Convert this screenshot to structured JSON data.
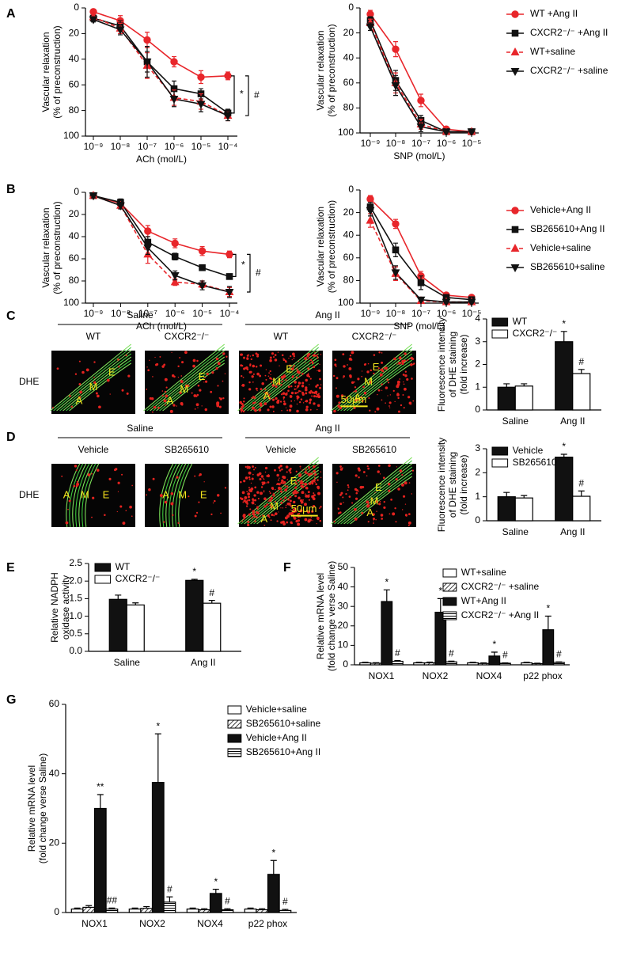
{
  "panels": [
    "A",
    "B",
    "C",
    "D",
    "E",
    "F",
    "G"
  ],
  "micrographs": [
    {
      "group_labels": [
        "Saline",
        "Ang II"
      ],
      "columns": [
        "WT",
        "CXCR2⁻/⁻",
        "WT",
        "CXCR2⁻/⁻"
      ],
      "row_label": "DHE",
      "layer_labels": [
        [
          "E",
          "M",
          "A"
        ],
        [
          "E",
          "M",
          "A"
        ],
        [
          "E",
          "M",
          "A"
        ],
        [
          "E",
          "M",
          "A"
        ]
      ],
      "scale_bar": "50μm"
    },
    {
      "group_labels": [
        "Saline",
        "Ang II"
      ],
      "columns": [
        "Vehicle",
        "SB265610",
        "Vehicle",
        "SB265610"
      ],
      "row_label": "DHE",
      "layer_labels": [
        [
          "A",
          "M",
          "E"
        ],
        [
          "A",
          "M",
          "E"
        ],
        [
          "E",
          "M",
          "A"
        ],
        [
          "E",
          "M",
          "A"
        ]
      ],
      "scale_bar": "50μm"
    }
  ],
  "chart_data": [
    {
      "type": "line",
      "xlabel": "ACh (mol/L)",
      "ylabel": [
        "Vascular relaxation",
        "(% of preconstruction)"
      ],
      "categories": [
        "10⁻⁹",
        "10⁻⁸",
        "10⁻⁷",
        "10⁻⁶",
        "10⁻⁵",
        "10⁻⁴"
      ],
      "ylim": [
        100,
        0
      ],
      "yticks": [
        0,
        20,
        40,
        60,
        80,
        100
      ],
      "annotations": [
        "*",
        "#"
      ],
      "series": [
        {
          "color": "#e8262b",
          "marker": "circle",
          "dashed": false,
          "values": [
            3,
            10,
            25,
            42,
            54,
            53
          ],
          "errors": [
            2,
            4,
            6,
            4,
            5,
            3
          ]
        },
        {
          "color": "#111111",
          "marker": "square",
          "dashed": false,
          "values": [
            8,
            14,
            42,
            63,
            67,
            82
          ],
          "errors": [
            2,
            4,
            8,
            6,
            4,
            3
          ]
        },
        {
          "color": "#e8262b",
          "marker": "triangle",
          "dashed": true,
          "values": [
            7,
            16,
            45,
            70,
            73,
            84
          ],
          "errors": [
            2,
            4,
            10,
            6,
            6,
            4
          ]
        },
        {
          "color": "#111111",
          "marker": "triangle-down",
          "dashed": false,
          "values": [
            9,
            17,
            42,
            71,
            75,
            84
          ],
          "errors": [
            2,
            4,
            12,
            6,
            6,
            4
          ]
        }
      ]
    },
    {
      "type": "line",
      "xlabel": "SNP (mol/L)",
      "ylabel": [
        "Vascular relaxation",
        "(% of preconstruction)"
      ],
      "categories": [
        "10⁻⁹",
        "10⁻⁸",
        "10⁻⁷",
        "10⁻⁶",
        "10⁻⁵"
      ],
      "ylim": [
        100,
        0
      ],
      "yticks": [
        0,
        20,
        40,
        60,
        80,
        100
      ],
      "legend": "right",
      "series": [
        {
          "name": "WT +Ang II",
          "color": "#e8262b",
          "marker": "circle",
          "dashed": false,
          "values": [
            5,
            33,
            74,
            97,
            99
          ],
          "errors": [
            3,
            6,
            5,
            2,
            1
          ]
        },
        {
          "name": "CXCR2⁻/⁻ +Ang II",
          "color": "#111111",
          "marker": "square",
          "dashed": false,
          "values": [
            10,
            58,
            90,
            99,
            99
          ],
          "errors": [
            3,
            8,
            4,
            1,
            1
          ]
        },
        {
          "name": "WT+saline",
          "color": "#e8262b",
          "marker": "triangle",
          "dashed": true,
          "values": [
            12,
            60,
            93,
            99,
            99
          ],
          "errors": [
            3,
            8,
            4,
            1,
            1
          ]
        },
        {
          "name": "CXCR2⁻/⁻ +saline",
          "color": "#111111",
          "marker": "triangle-down",
          "dashed": false,
          "values": [
            15,
            62,
            95,
            99,
            99
          ],
          "errors": [
            3,
            8,
            4,
            1,
            1
          ]
        }
      ]
    },
    {
      "type": "line",
      "xlabel": "ACh (mol/L)",
      "ylabel": [
        "Vascular relaxation",
        "(% of preconstruction)"
      ],
      "categories": [
        "10⁻⁹",
        "10⁻⁸",
        "10⁻⁷",
        "10⁻⁶",
        "10⁻⁵",
        "10⁻⁴"
      ],
      "ylim": [
        100,
        0
      ],
      "yticks": [
        0,
        20,
        40,
        60,
        80,
        100
      ],
      "annotations": [
        "*",
        "#"
      ],
      "series": [
        {
          "color": "#e8262b",
          "marker": "circle",
          "dashed": false,
          "values": [
            3,
            10,
            35,
            46,
            53,
            56
          ],
          "errors": [
            2,
            3,
            5,
            4,
            4,
            3
          ]
        },
        {
          "color": "#111111",
          "marker": "square",
          "dashed": false,
          "values": [
            3,
            9,
            45,
            58,
            68,
            76
          ],
          "errors": [
            2,
            3,
            5,
            3,
            2,
            2
          ]
        },
        {
          "color": "#e8262b",
          "marker": "triangle",
          "dashed": true,
          "values": [
            3,
            12,
            56,
            81,
            83,
            90
          ],
          "errors": [
            2,
            3,
            8,
            3,
            3,
            4
          ]
        },
        {
          "color": "#111111",
          "marker": "triangle-down",
          "dashed": false,
          "values": [
            3,
            12,
            50,
            75,
            84,
            90
          ],
          "errors": [
            2,
            3,
            6,
            4,
            4,
            5
          ]
        }
      ]
    },
    {
      "type": "line",
      "xlabel": "SNP (mol/L)",
      "ylabel": [
        "Vascular relaxation",
        "(% of preconstruction)"
      ],
      "categories": [
        "10⁻⁹",
        "10⁻⁸",
        "10⁻⁷",
        "10⁻⁶",
        "10⁻⁵"
      ],
      "ylim": [
        100,
        0
      ],
      "yticks": [
        0,
        20,
        40,
        60,
        80,
        100
      ],
      "legend": "right",
      "series": [
        {
          "name": "Vehicle+Ang II",
          "color": "#e8262b",
          "marker": "circle",
          "dashed": false,
          "values": [
            8,
            30,
            76,
            93,
            95
          ],
          "errors": [
            3,
            4,
            4,
            2,
            2
          ]
        },
        {
          "name": "SB265610+Ang II",
          "color": "#111111",
          "marker": "square",
          "dashed": false,
          "values": [
            15,
            53,
            82,
            95,
            97
          ],
          "errors": [
            4,
            6,
            6,
            2,
            2
          ]
        },
        {
          "name": "Vehicle+saline",
          "color": "#e8262b",
          "marker": "triangle",
          "dashed": true,
          "values": [
            27,
            74,
            98,
            99,
            99
          ],
          "errors": [
            6,
            6,
            1,
            1,
            1
          ]
        },
        {
          "name": "SB265610+saline",
          "color": "#111111",
          "marker": "triangle-down",
          "dashed": false,
          "values": [
            18,
            73,
            97,
            99,
            99
          ],
          "errors": [
            5,
            6,
            1,
            1,
            1
          ]
        }
      ]
    },
    {
      "type": "bar",
      "ylabel": [
        "Fluorescence intensity",
        "of DHE staining",
        "(fold increase)"
      ],
      "categories": [
        "Saline",
        "Ang II"
      ],
      "ylim": [
        0,
        4
      ],
      "yticks": [
        0,
        1,
        2,
        3,
        4
      ],
      "legend": "top-left",
      "series": [
        {
          "name": "WT",
          "color": "#111111",
          "pattern": "solid",
          "values": [
            1.0,
            3.0
          ],
          "errors": [
            0.15,
            0.45
          ],
          "significance": [
            null,
            "*"
          ]
        },
        {
          "name": "CXCR2⁻/⁻",
          "color": "#ffffff",
          "pattern": "solid",
          "values": [
            1.05,
            1.6
          ],
          "errors": [
            0.1,
            0.18
          ],
          "significance": [
            null,
            "#"
          ]
        }
      ]
    },
    {
      "type": "bar",
      "ylabel": [
        "Fluorescence intensity",
        "of DHE staining",
        "(fold increase)"
      ],
      "categories": [
        "Saline",
        "Ang II"
      ],
      "ylim": [
        0,
        3
      ],
      "yticks": [
        0,
        1,
        2,
        3
      ],
      "legend": "top-left",
      "series": [
        {
          "name": "Vehicle",
          "color": "#111111",
          "pattern": "solid",
          "values": [
            1.0,
            2.65
          ],
          "errors": [
            0.18,
            0.12
          ],
          "significance": [
            null,
            "*"
          ]
        },
        {
          "name": "SB265610",
          "color": "#ffffff",
          "pattern": "solid",
          "values": [
            0.95,
            1.02
          ],
          "errors": [
            0.1,
            0.22
          ],
          "significance": [
            null,
            "#"
          ]
        }
      ]
    },
    {
      "type": "bar",
      "ylabel": [
        "Relative NADPH",
        "oxidase activity"
      ],
      "categories": [
        "Saline",
        "Ang II"
      ],
      "ylim": [
        0,
        2.5
      ],
      "yticks": [
        {
          "value": 0,
          "label": "0.0"
        },
        0.5,
        {
          "value": 1,
          "label": "1.0"
        },
        1.5,
        {
          "value": 2,
          "label": "2.0"
        },
        2.5
      ],
      "legend": "top-left",
      "series": [
        {
          "name": "WT",
          "color": "#111111",
          "pattern": "solid",
          "values": [
            1.48,
            2.02
          ],
          "errors": [
            0.12,
            0.03
          ],
          "significance": [
            null,
            "*"
          ]
        },
        {
          "name": "CXCR2⁻/⁻",
          "color": "#ffffff",
          "pattern": "solid",
          "values": [
            1.32,
            1.37
          ],
          "errors": [
            0.06,
            0.08
          ],
          "significance": [
            null,
            "#"
          ]
        }
      ]
    },
    {
      "type": "bar",
      "ylabel": [
        "Relative mRNA level",
        "(fold change verse Saline)"
      ],
      "categories": [
        "NOX1",
        "NOX2",
        "NOX4",
        "p22 phox"
      ],
      "ylim": [
        0,
        50
      ],
      "yticks": [
        0,
        10,
        20,
        30,
        40,
        50
      ],
      "legend": "top-right",
      "series": [
        {
          "name": "WT+saline",
          "color": "#ffffff",
          "pattern": "solid",
          "values": [
            1,
            1,
            1,
            1
          ],
          "errors": [
            0.3,
            0.3,
            0.3,
            0.3
          ]
        },
        {
          "name": "CXCR2⁻/⁻ +saline",
          "color": "#ffffff",
          "pattern": "hatch",
          "values": [
            0.8,
            1,
            0.7,
            0.6
          ],
          "errors": [
            0.3,
            0.4,
            0.3,
            0.2
          ]
        },
        {
          "name": "WT+Ang II",
          "color": "#111111",
          "pattern": "solid",
          "values": [
            32.5,
            27,
            4.5,
            18
          ],
          "errors": [
            6,
            7,
            2,
            7
          ],
          "significance": [
            "*",
            "*",
            "*",
            "*"
          ]
        },
        {
          "name": "CXCR2⁻/⁻ +Ang II",
          "color": "#ffffff",
          "pattern": "stripes",
          "values": [
            1.8,
            1.5,
            0.8,
            1.2
          ],
          "errors": [
            0.4,
            0.4,
            0.2,
            0.3
          ],
          "significance": [
            "#",
            "#",
            "#",
            "#"
          ]
        }
      ]
    },
    {
      "type": "bar",
      "ylabel": [
        "Relative mRNA level",
        "(fold change verse Saline)"
      ],
      "categories": [
        "NOX1",
        "NOX2",
        "NOX4",
        "p22 phox"
      ],
      "ylim": [
        0,
        60
      ],
      "yticks": [
        0,
        20,
        40,
        60
      ],
      "legend": "top-right",
      "series": [
        {
          "name": "Vehicle+saline",
          "color": "#ffffff",
          "pattern": "solid",
          "values": [
            1,
            1,
            1,
            1
          ],
          "errors": [
            0.3,
            0.3,
            0.3,
            0.3
          ]
        },
        {
          "name": "SB265610+saline",
          "color": "#ffffff",
          "pattern": "hatch",
          "values": [
            1.5,
            1.2,
            0.8,
            0.8
          ],
          "errors": [
            0.5,
            0.5,
            0.3,
            0.3
          ]
        },
        {
          "name": "Vehicle+Ang II",
          "color": "#111111",
          "pattern": "solid",
          "values": [
            30,
            37.5,
            5.5,
            11
          ],
          "errors": [
            4,
            14,
            1.2,
            4
          ],
          "significance": [
            "**",
            "*",
            "*",
            "*"
          ]
        },
        {
          "name": "SB265610+Ang II",
          "color": "#ffffff",
          "pattern": "stripes",
          "values": [
            1,
            3,
            0.8,
            0.6
          ],
          "errors": [
            0.3,
            1.5,
            0.3,
            0.3
          ],
          "significance": [
            "##",
            "#",
            "#",
            "#"
          ]
        }
      ]
    }
  ]
}
